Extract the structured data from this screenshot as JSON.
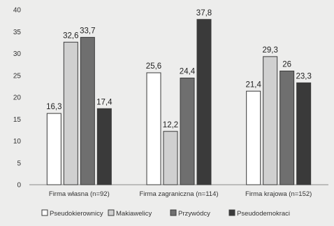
{
  "chart_data": {
    "type": "bar",
    "title": "",
    "xlabel": "",
    "ylabel": "",
    "ylim": [
      0,
      40
    ],
    "yticks": [
      0,
      5,
      10,
      15,
      20,
      25,
      30,
      35,
      40
    ],
    "categories": [
      "Firma własna (n=92)",
      "Firma zagraniczna (n=114)",
      "Firma krajowa (n=152)"
    ],
    "series": [
      {
        "name": "Pseudokierownicy",
        "values": [
          16.3,
          25.6,
          21.4
        ],
        "labels": [
          "16,3",
          "25,6",
          "21,4"
        ],
        "color": "#ffffff"
      },
      {
        "name": "Makiawelicy",
        "values": [
          32.6,
          12.2,
          29.3
        ],
        "labels": [
          "32,6",
          "12,2",
          "29,3"
        ],
        "color": "#d0d0d0"
      },
      {
        "name": "Przywódcy",
        "values": [
          33.7,
          24.4,
          26
        ],
        "labels": [
          "33,7",
          "24,4",
          "26"
        ],
        "color": "#6f6f6f"
      },
      {
        "name": "Pseudodemokraci",
        "values": [
          17.4,
          37.8,
          23.3
        ],
        "labels": [
          "17,4",
          "37,8",
          "23,3"
        ],
        "color": "#3a3a3a"
      }
    ],
    "grid": false,
    "legend_position": "bottom"
  }
}
